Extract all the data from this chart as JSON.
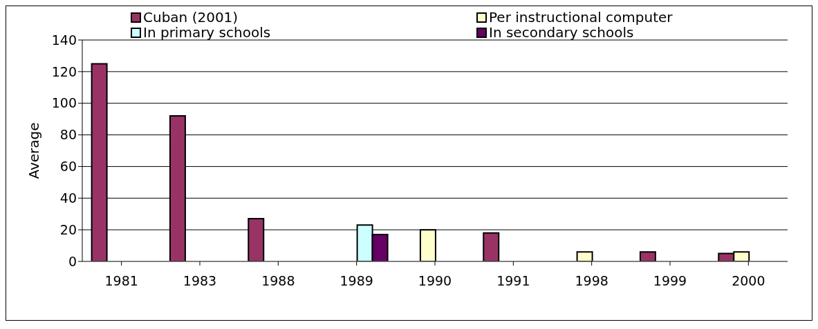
{
  "chart_data": {
    "type": "bar",
    "categories": [
      "1981",
      "1983",
      "1988",
      "1989",
      "1990",
      "1991",
      "1998",
      "1999",
      "2000"
    ],
    "ylabel": "Average",
    "ylim": [
      0,
      140
    ],
    "yticks": [
      0,
      20,
      40,
      60,
      80,
      100,
      120,
      140
    ],
    "grid": "y",
    "legend": "top",
    "series": [
      {
        "name": "Cuban (2001)",
        "color": "#993366",
        "values": [
          125,
          92,
          27,
          null,
          null,
          18,
          null,
          6,
          5
        ]
      },
      {
        "name": "Per instructional computer",
        "color": "#ffffcc",
        "values": [
          null,
          null,
          null,
          null,
          20,
          null,
          6,
          null,
          6
        ]
      },
      {
        "name": "In primary schools",
        "color": "#ccffff",
        "values": [
          null,
          null,
          null,
          23,
          null,
          null,
          null,
          null,
          null
        ]
      },
      {
        "name": "In secondary schools",
        "color": "#660066",
        "values": [
          null,
          null,
          null,
          17,
          null,
          null,
          null,
          null,
          null
        ]
      }
    ]
  }
}
